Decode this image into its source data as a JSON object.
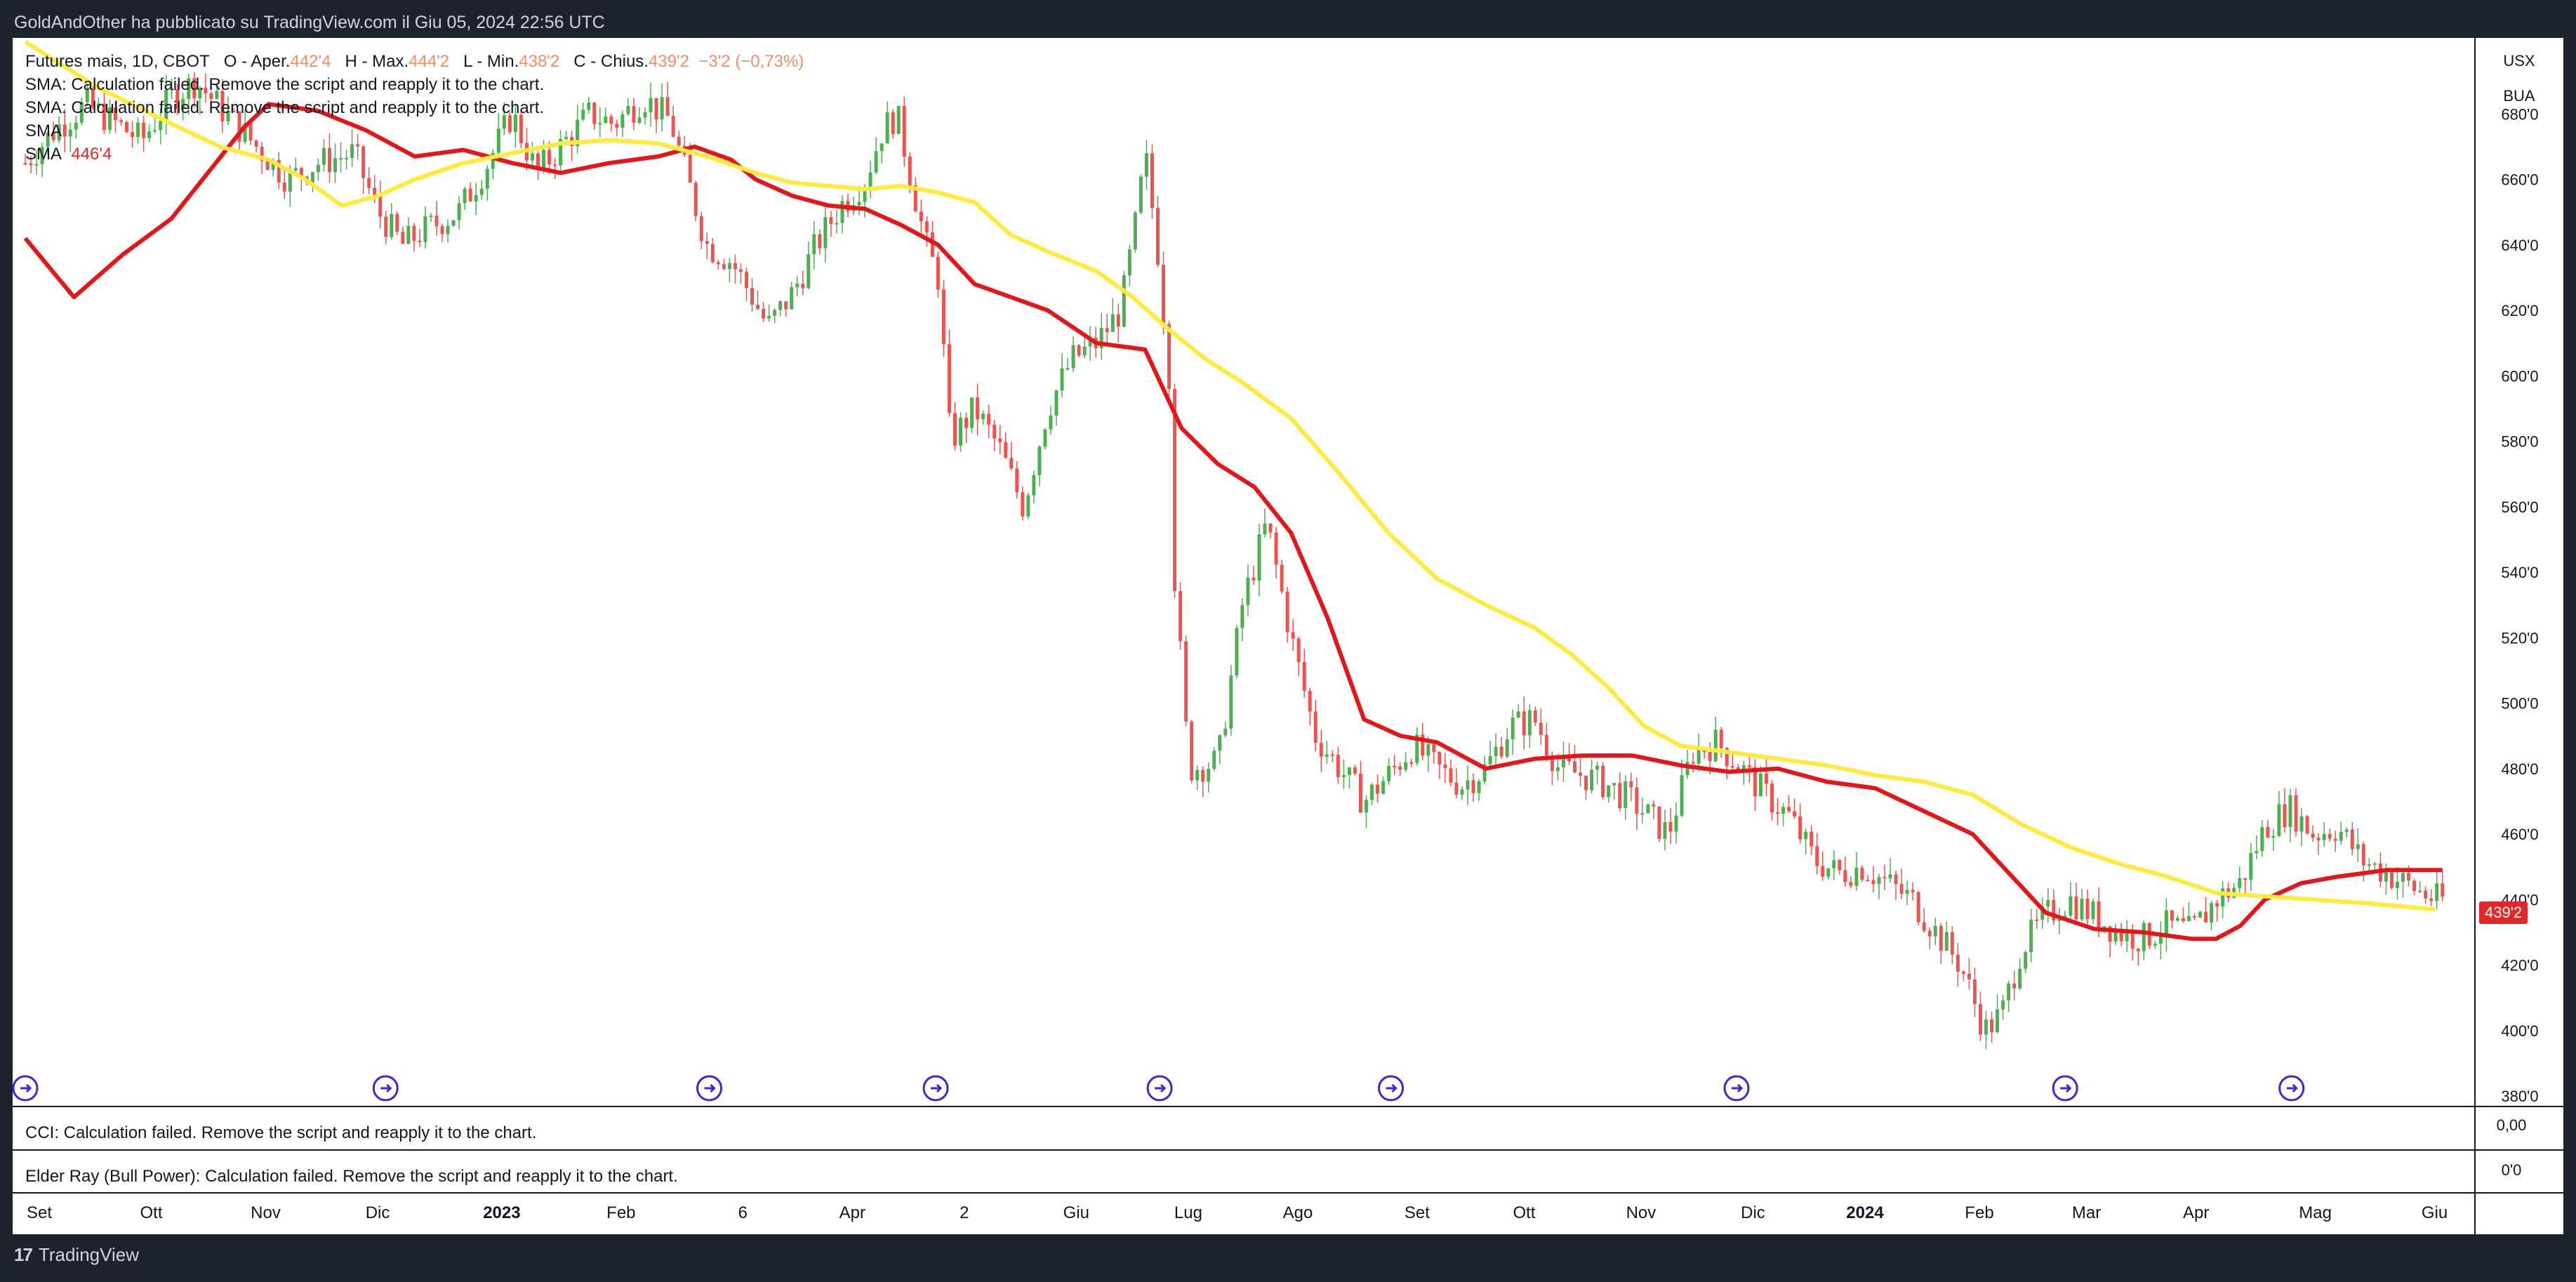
{
  "header": {
    "publication": "GoldAndOther ha pubblicato su TradingView.com il Giu 05, 2024 22:56 UTC"
  },
  "legend": {
    "symbol": "Futures mais, 1D, CBOT",
    "open_label": "O - Aper.",
    "open_value": "442'4",
    "high_label": "H - Max.",
    "high_value": "444'2",
    "low_label": "L - Min.",
    "low_value": "438'2",
    "close_label": "C - Chius.",
    "close_value": "439'2",
    "change_value": "−3'2 (−0,73%)",
    "sma_failed_1": "SMA: Calculation failed. Remove the script and reapply it to the chart.",
    "sma_failed_2": "SMA: Calculation failed. Remove the script and reapply it to the chart.",
    "sma_3": "SMA",
    "sma_4": "SMA",
    "sma_4_value": "446'4"
  },
  "right_axis": {
    "currency": "USX",
    "unit": "BUA",
    "last_price_tag": "439'2",
    "cci_value": "0,00",
    "elder_value": "0'0"
  },
  "panes": {
    "cci_text": "CCI: Calculation failed. Remove the script and reapply it to the chart.",
    "elder_text": "Elder Ray (Bull Power): Calculation failed. Remove the script and reapply it to the chart."
  },
  "footer": {
    "brand": "TradingView"
  },
  "colors": {
    "up": "#26a69a",
    "candle_up": "#4caf50",
    "candle_down": "#ef5350",
    "sma_red": "#e3161a",
    "sma_yellow": "#ffeb3b",
    "event_icon": "#3b26d9"
  },
  "chart_data": {
    "type": "candlestick",
    "y_ticks": [
      "680'0",
      "660'0",
      "640'0",
      "620'0",
      "600'0",
      "580'0",
      "560'0",
      "540'0",
      "520'0",
      "500'0",
      "480'0",
      "460'0",
      "440'0",
      "420'0",
      "400'0",
      "380'0"
    ],
    "y_tick_values": [
      680,
      660,
      640,
      620,
      600,
      580,
      560,
      540,
      520,
      500,
      480,
      460,
      440,
      420,
      400,
      380
    ],
    "ylim": [
      380,
      700
    ],
    "x_labels": [
      {
        "label": "Set",
        "bold": false
      },
      {
        "label": "Ott",
        "bold": false
      },
      {
        "label": "Nov",
        "bold": false
      },
      {
        "label": "Dic",
        "bold": false
      },
      {
        "label": "2023",
        "bold": true
      },
      {
        "label": "Feb",
        "bold": false
      },
      {
        "label": "6",
        "bold": false
      },
      {
        "label": "Apr",
        "bold": false
      },
      {
        "label": "2",
        "bold": false
      },
      {
        "label": "Giu",
        "bold": false
      },
      {
        "label": "Lug",
        "bold": false
      },
      {
        "label": "Ago",
        "bold": false
      },
      {
        "label": "Set",
        "bold": false
      },
      {
        "label": "Ott",
        "bold": false
      },
      {
        "label": "Nov",
        "bold": false
      },
      {
        "label": "Dic",
        "bold": false
      },
      {
        "label": "2024",
        "bold": true
      },
      {
        "label": "Feb",
        "bold": false
      },
      {
        "label": "Mar",
        "bold": false
      },
      {
        "label": "Apr",
        "bold": false
      },
      {
        "label": "Mag",
        "bold": false
      },
      {
        "label": "Giu",
        "bold": false
      }
    ],
    "x_label_positions": [
      0.0,
      0.046,
      0.093,
      0.139,
      0.19,
      0.239,
      0.289,
      0.334,
      0.38,
      0.426,
      0.472,
      0.517,
      0.566,
      0.61,
      0.658,
      0.704,
      0.75,
      0.797,
      0.841,
      0.886,
      0.935,
      0.984
    ],
    "event_positions": [
      0.0,
      0.148,
      0.281,
      0.374,
      0.466,
      0.561,
      0.703,
      0.838,
      0.931
    ],
    "price_path": [
      [
        0.0,
        665
      ],
      [
        0.012,
        675
      ],
      [
        0.025,
        683
      ],
      [
        0.035,
        678
      ],
      [
        0.048,
        672
      ],
      [
        0.06,
        685
      ],
      [
        0.07,
        690
      ],
      [
        0.08,
        682
      ],
      [
        0.095,
        670
      ],
      [
        0.108,
        660
      ],
      [
        0.12,
        665
      ],
      [
        0.135,
        668
      ],
      [
        0.145,
        650
      ],
      [
        0.155,
        640
      ],
      [
        0.165,
        645
      ],
      [
        0.178,
        650
      ],
      [
        0.19,
        665
      ],
      [
        0.2,
        680
      ],
      [
        0.21,
        662
      ],
      [
        0.22,
        670
      ],
      [
        0.232,
        680
      ],
      [
        0.242,
        677
      ],
      [
        0.254,
        685
      ],
      [
        0.265,
        678
      ],
      [
        0.272,
        660
      ],
      [
        0.28,
        640
      ],
      [
        0.29,
        635
      ],
      [
        0.298,
        625
      ],
      [
        0.305,
        615
      ],
      [
        0.315,
        625
      ],
      [
        0.325,
        640
      ],
      [
        0.335,
        652
      ],
      [
        0.345,
        660
      ],
      [
        0.352,
        675
      ],
      [
        0.358,
        680
      ],
      [
        0.364,
        660
      ],
      [
        0.37,
        640
      ],
      [
        0.375,
        630
      ],
      [
        0.38,
        580
      ],
      [
        0.39,
        590
      ],
      [
        0.4,
        578
      ],
      [
        0.41,
        560
      ],
      [
        0.42,
        590
      ],
      [
        0.43,
        605
      ],
      [
        0.44,
        610
      ],
      [
        0.45,
        620
      ],
      [
        0.457,
        650
      ],
      [
        0.46,
        668
      ],
      [
        0.465,
        640
      ],
      [
        0.47,
        600
      ],
      [
        0.472,
        540
      ],
      [
        0.478,
        480
      ],
      [
        0.49,
        482
      ],
      [
        0.5,
        530
      ],
      [
        0.51,
        555
      ],
      [
        0.52,
        520
      ],
      [
        0.53,
        490
      ],
      [
        0.54,
        480
      ],
      [
        0.55,
        470
      ],
      [
        0.56,
        478
      ],
      [
        0.57,
        487
      ],
      [
        0.58,
        480
      ],
      [
        0.59,
        475
      ],
      [
        0.6,
        480
      ],
      [
        0.61,
        493
      ],
      [
        0.62,
        495
      ],
      [
        0.63,
        480
      ],
      [
        0.64,
        478
      ],
      [
        0.65,
        475
      ],
      [
        0.66,
        470
      ],
      [
        0.675,
        460
      ],
      [
        0.685,
        485
      ],
      [
        0.695,
        488
      ],
      [
        0.705,
        480
      ],
      [
        0.715,
        472
      ],
      [
        0.725,
        465
      ],
      [
        0.735,
        452
      ],
      [
        0.745,
        448
      ],
      [
        0.755,
        450
      ],
      [
        0.765,
        445
      ],
      [
        0.775,
        440
      ],
      [
        0.785,
        430
      ],
      [
        0.795,
        420
      ],
      [
        0.805,
        400
      ],
      [
        0.812,
        405
      ],
      [
        0.82,
        425
      ],
      [
        0.83,
        435
      ],
      [
        0.84,
        440
      ],
      [
        0.85,
        435
      ],
      [
        0.86,
        430
      ],
      [
        0.87,
        428
      ],
      [
        0.88,
        432
      ],
      [
        0.89,
        430
      ],
      [
        0.9,
        440
      ],
      [
        0.91,
        445
      ],
      [
        0.92,
        462
      ],
      [
        0.93,
        468
      ],
      [
        0.94,
        460
      ],
      [
        0.95,
        462
      ],
      [
        0.96,
        452
      ],
      [
        0.97,
        448
      ],
      [
        0.98,
        444
      ],
      [
        0.99,
        440
      ]
    ],
    "series": [
      {
        "name": "SMA",
        "color": "#e3161a",
        "points": [
          [
            0.0,
            642
          ],
          [
            0.02,
            624
          ],
          [
            0.04,
            637
          ],
          [
            0.06,
            648
          ],
          [
            0.075,
            662
          ],
          [
            0.09,
            676
          ],
          [
            0.1,
            683
          ],
          [
            0.12,
            681
          ],
          [
            0.14,
            675
          ],
          [
            0.16,
            667
          ],
          [
            0.18,
            669
          ],
          [
            0.2,
            665
          ],
          [
            0.22,
            662
          ],
          [
            0.24,
            665
          ],
          [
            0.26,
            667
          ],
          [
            0.275,
            670
          ],
          [
            0.29,
            666
          ],
          [
            0.3,
            660
          ],
          [
            0.315,
            655
          ],
          [
            0.33,
            652
          ],
          [
            0.345,
            651
          ],
          [
            0.36,
            646
          ],
          [
            0.375,
            640
          ],
          [
            0.39,
            628
          ],
          [
            0.405,
            624
          ],
          [
            0.42,
            620
          ],
          [
            0.44,
            610
          ],
          [
            0.46,
            608
          ],
          [
            0.475,
            584
          ],
          [
            0.49,
            573
          ],
          [
            0.505,
            566
          ],
          [
            0.52,
            552
          ],
          [
            0.535,
            526
          ],
          [
            0.55,
            495
          ],
          [
            0.565,
            490
          ],
          [
            0.58,
            488
          ],
          [
            0.6,
            480
          ],
          [
            0.62,
            483
          ],
          [
            0.64,
            484
          ],
          [
            0.66,
            484
          ],
          [
            0.68,
            481
          ],
          [
            0.7,
            479
          ],
          [
            0.72,
            480
          ],
          [
            0.74,
            476
          ],
          [
            0.76,
            474
          ],
          [
            0.78,
            467
          ],
          [
            0.8,
            460
          ],
          [
            0.815,
            448
          ],
          [
            0.83,
            436
          ],
          [
            0.85,
            431
          ],
          [
            0.87,
            430
          ],
          [
            0.89,
            428
          ],
          [
            0.9,
            428
          ],
          [
            0.91,
            432
          ],
          [
            0.92,
            440
          ],
          [
            0.935,
            445
          ],
          [
            0.95,
            447
          ],
          [
            0.96,
            448
          ],
          [
            0.97,
            449
          ],
          [
            0.985,
            449
          ],
          [
            0.993,
            449
          ]
        ]
      },
      {
        "name": "SMA",
        "color": "#ffeb3b",
        "points": [
          [
            0.0,
            702
          ],
          [
            0.03,
            688
          ],
          [
            0.06,
            677
          ],
          [
            0.08,
            670
          ],
          [
            0.1,
            666
          ],
          [
            0.115,
            660
          ],
          [
            0.13,
            652
          ],
          [
            0.145,
            655
          ],
          [
            0.16,
            660
          ],
          [
            0.18,
            665
          ],
          [
            0.2,
            668
          ],
          [
            0.22,
            671
          ],
          [
            0.24,
            672
          ],
          [
            0.26,
            671
          ],
          [
            0.28,
            667
          ],
          [
            0.3,
            662
          ],
          [
            0.315,
            659
          ],
          [
            0.33,
            658
          ],
          [
            0.345,
            657
          ],
          [
            0.36,
            658
          ],
          [
            0.375,
            656
          ],
          [
            0.39,
            653
          ],
          [
            0.405,
            643
          ],
          [
            0.42,
            638
          ],
          [
            0.44,
            632
          ],
          [
            0.455,
            624
          ],
          [
            0.47,
            614
          ],
          [
            0.485,
            605
          ],
          [
            0.5,
            598
          ],
          [
            0.52,
            587
          ],
          [
            0.54,
            570
          ],
          [
            0.56,
            552
          ],
          [
            0.58,
            538
          ],
          [
            0.6,
            530
          ],
          [
            0.62,
            523
          ],
          [
            0.635,
            515
          ],
          [
            0.65,
            505
          ],
          [
            0.665,
            493
          ],
          [
            0.68,
            487
          ],
          [
            0.7,
            485
          ],
          [
            0.72,
            483
          ],
          [
            0.74,
            481
          ],
          [
            0.76,
            478
          ],
          [
            0.78,
            476
          ],
          [
            0.8,
            472
          ],
          [
            0.82,
            463
          ],
          [
            0.84,
            456
          ],
          [
            0.86,
            451
          ],
          [
            0.88,
            447
          ],
          [
            0.9,
            442
          ],
          [
            0.92,
            441
          ],
          [
            0.94,
            440
          ],
          [
            0.96,
            439
          ],
          [
            0.975,
            438
          ],
          [
            0.99,
            437
          ]
        ]
      }
    ]
  }
}
